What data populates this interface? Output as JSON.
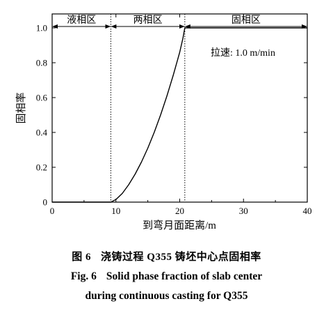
{
  "chart_data": {
    "type": "line",
    "xlabel": "到弯月面距离/m",
    "ylabel": "固相率",
    "xlim": [
      0,
      40
    ],
    "ylim": [
      0,
      1.0
    ],
    "x_ticks": [
      0,
      10,
      20,
      30,
      40
    ],
    "y_ticks": [
      0,
      0.2,
      0.4,
      0.6,
      0.8,
      1.0
    ],
    "y_tick_labels": [
      "0",
      "0.2",
      "0.4",
      "0.6",
      "0.8",
      "1.0"
    ],
    "grid": false,
    "series": [
      {
        "x": [
          0,
          5,
          9.2,
          10,
          11,
          12,
          13,
          14,
          15,
          16,
          17,
          18,
          19,
          20,
          20.5,
          20.8,
          25,
          30,
          35,
          40
        ],
        "y": [
          0,
          0,
          0,
          0.015,
          0.05,
          0.1,
          0.16,
          0.23,
          0.31,
          0.4,
          0.5,
          0.61,
          0.73,
          0.86,
          0.94,
          1.0,
          1.0,
          1.0,
          1.0,
          1.0
        ]
      }
    ],
    "boundaries": [
      9.2,
      20.8
    ],
    "regions": [
      {
        "label": "液相区",
        "from": 0,
        "to": 9.2
      },
      {
        "label": "两相区",
        "from": 9.2,
        "to": 20.8
      },
      {
        "label": "固相区",
        "from": 20.8,
        "to": 40
      }
    ],
    "annotation": "拉速: 1.0 m/min"
  },
  "caption": {
    "zh_prefix": "图 6",
    "zh_title": "浇铸过程 Q355 铸坯中心点固相率",
    "en_prefix": "Fig. 6",
    "en_line1": "Solid phase fraction of slab center",
    "en_line2": "during continuous casting for Q355"
  }
}
